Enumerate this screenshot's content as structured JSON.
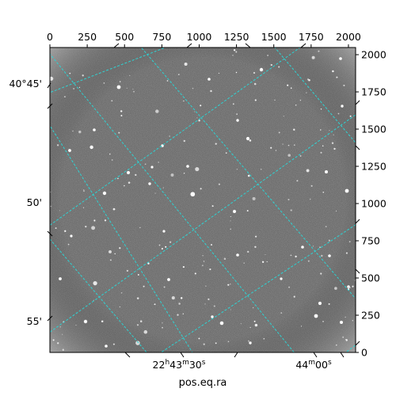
{
  "image": {
    "subject": "grayscale astronomical star field with celestial coordinate grid overlay",
    "background_color": "#5c5c5c",
    "grid_color": "#2ed3d3",
    "star_color": "#ffffff"
  },
  "pixel_axes": {
    "x_range": [
      0,
      2048
    ],
    "y_range": [
      0,
      2048
    ],
    "top_ticks": [
      {
        "value": 0,
        "label": "0"
      },
      {
        "value": 250,
        "label": "250"
      },
      {
        "value": 500,
        "label": "500"
      },
      {
        "value": 750,
        "label": "750"
      },
      {
        "value": 1000,
        "label": "1000"
      },
      {
        "value": 1250,
        "label": "1250"
      },
      {
        "value": 1500,
        "label": "1500"
      },
      {
        "value": 1750,
        "label": "1750"
      },
      {
        "value": 2000,
        "label": "2000"
      }
    ],
    "right_ticks": [
      {
        "value": 0,
        "label": "0"
      },
      {
        "value": 250,
        "label": "250"
      },
      {
        "value": 500,
        "label": "500"
      },
      {
        "value": 750,
        "label": "750"
      },
      {
        "value": 1000,
        "label": "1000"
      },
      {
        "value": 1250,
        "label": "1250"
      },
      {
        "value": 1500,
        "label": "1500"
      },
      {
        "value": 1750,
        "label": "1750"
      },
      {
        "value": 2000,
        "label": "2000"
      }
    ]
  },
  "world_axes": {
    "bottom_label": "pos.eq.ra",
    "ra_ticks": [
      {
        "label": "22h43m30s"
      },
      {
        "label": "44m00s"
      }
    ],
    "dec_ticks": [
      {
        "label": "40°45'"
      },
      {
        "label": "50'"
      },
      {
        "label": "55'"
      }
    ]
  }
}
